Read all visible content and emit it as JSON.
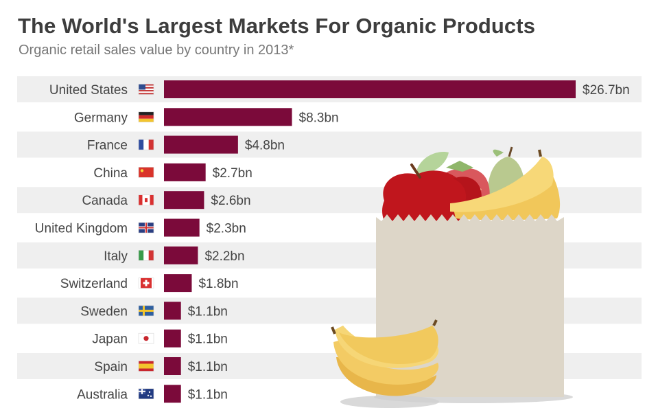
{
  "chart_data": {
    "type": "bar",
    "orientation": "horizontal",
    "title": "The World's Largest Markets For Organic Products",
    "subtitle": "Organic retail sales value by country in 2013*",
    "categories": [
      "United States",
      "Germany",
      "France",
      "China",
      "Canada",
      "United Kingdom",
      "Italy",
      "Switzerland",
      "Sweden",
      "Japan",
      "Spain",
      "Australia"
    ],
    "values": [
      26.7,
      8.3,
      4.8,
      2.7,
      2.6,
      2.3,
      2.2,
      1.8,
      1.1,
      1.1,
      1.1,
      1.1
    ],
    "value_labels": [
      "$26.7bn",
      "$8.3bn",
      "$4.8bn",
      "$2.7bn",
      "$2.6bn",
      "$2.3bn",
      "$2.2bn",
      "$1.8bn",
      "$1.1bn",
      "$1.1bn",
      "$1.1bn",
      "$1.1bn"
    ],
    "flag_icons": [
      "us-flag-icon",
      "germany-flag-icon",
      "france-flag-icon",
      "china-flag-icon",
      "canada-flag-icon",
      "uk-flag-icon",
      "italy-flag-icon",
      "switzerland-flag-icon",
      "sweden-flag-icon",
      "japan-flag-icon",
      "spain-flag-icon",
      "australia-flag-icon"
    ],
    "xlim": [
      0,
      26.7
    ],
    "bar_color": "#7b0a3a",
    "row_band_color": "#efefef",
    "grid": false,
    "legend": "none"
  },
  "illustration": {
    "icon": "grocery-bag-with-fruit-icon",
    "items": [
      "paper-bag-icon",
      "apple-icon",
      "strawberry-icon",
      "pear-icon",
      "bananas-icon"
    ]
  }
}
